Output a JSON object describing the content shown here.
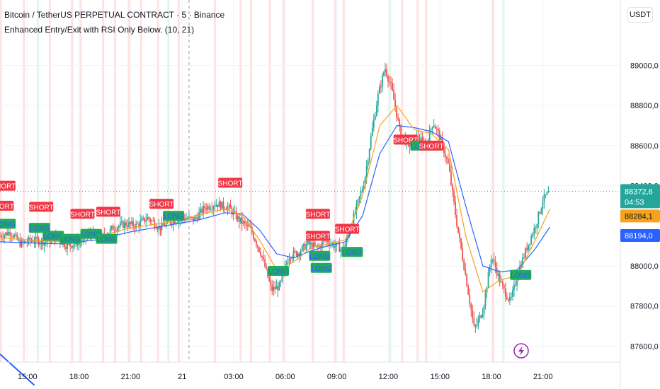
{
  "header": {
    "title": "Bitcoin / TetherUS PERPETUAL CONTRACT · 5 · Binance",
    "indicator": "Enhanced Entry/Exit with RSI Only Below. (10, 21)"
  },
  "currency": "USDT",
  "price_tags": {
    "last_price": "88372,6",
    "countdown": "04:53",
    "ma_fast": "88284,1",
    "ma_slow": "88194,0"
  },
  "colors": {
    "up": "#26a69a",
    "down": "#ef5350",
    "ma_fast": "#f7a21b",
    "ma_slow": "#2962ff",
    "short_label": "#f23645",
    "long_label": "#22ab5e",
    "bg_band_red": "#ffe2e2",
    "bg_band_green": "#e3f5ea"
  },
  "chart_data": {
    "type": "candlestick",
    "y_ticks": [
      "89000,0",
      "88800,0",
      "88600,0",
      "88400,0",
      "88000,0",
      "87800,0",
      "87600,0"
    ],
    "ylim": [
      87520,
      89150
    ],
    "x_ticks": [
      "15:00",
      "18:00",
      "21:00",
      "21",
      "03:00",
      "06:00",
      "09:00",
      "12:00",
      "15:00",
      "18:00",
      "21:00"
    ],
    "x_tick_hours": [
      15,
      18,
      21,
      24,
      27,
      30,
      33,
      36,
      39,
      42,
      45
    ],
    "x_hours_range": [
      13.4,
      49.5
    ],
    "price_path": [
      [
        13.4,
        88150
      ],
      [
        14.0,
        88170
      ],
      [
        14.6,
        88110
      ],
      [
        15.3,
        88130
      ],
      [
        16.0,
        88120
      ],
      [
        16.7,
        88140
      ],
      [
        17.3,
        88100
      ],
      [
        18.0,
        88120
      ],
      [
        18.7,
        88160
      ],
      [
        19.3,
        88140
      ],
      [
        20.0,
        88190
      ],
      [
        20.7,
        88210
      ],
      [
        21.3,
        88200
      ],
      [
        22.0,
        88240
      ],
      [
        22.7,
        88190
      ],
      [
        23.3,
        88220
      ],
      [
        24.0,
        88240
      ],
      [
        24.7,
        88230
      ],
      [
        25.3,
        88290
      ],
      [
        26.0,
        88310
      ],
      [
        26.7,
        88290
      ],
      [
        27.3,
        88230
      ],
      [
        28.0,
        88180
      ],
      [
        28.6,
        88060
      ],
      [
        29.2,
        87880
      ],
      [
        29.7,
        87900
      ],
      [
        30.2,
        88050
      ],
      [
        30.8,
        88070
      ],
      [
        31.3,
        88110
      ],
      [
        31.9,
        88090
      ],
      [
        32.3,
        88130
      ],
      [
        32.9,
        88100
      ],
      [
        33.4,
        88080
      ],
      [
        34.0,
        88250
      ],
      [
        34.6,
        88420
      ],
      [
        35.0,
        88650
      ],
      [
        35.4,
        88850
      ],
      [
        35.8,
        88990
      ],
      [
        36.2,
        88880
      ],
      [
        36.7,
        88660
      ],
      [
        37.2,
        88600
      ],
      [
        37.7,
        88640
      ],
      [
        38.2,
        88600
      ],
      [
        38.6,
        88720
      ],
      [
        39.0,
        88640
      ],
      [
        39.5,
        88500
      ],
      [
        40.0,
        88200
      ],
      [
        40.5,
        87950
      ],
      [
        41.0,
        87680
      ],
      [
        41.5,
        87780
      ],
      [
        42.0,
        88050
      ],
      [
        42.6,
        87900
      ],
      [
        43.1,
        87820
      ],
      [
        43.6,
        87980
      ],
      [
        44.1,
        88100
      ],
      [
        44.6,
        88210
      ],
      [
        45.0,
        88330
      ],
      [
        45.4,
        88372
      ]
    ],
    "ma_fast_path": [
      [
        13.4,
        88140
      ],
      [
        15.0,
        88130
      ],
      [
        17.0,
        88120
      ],
      [
        19.0,
        88145
      ],
      [
        21.0,
        88190
      ],
      [
        23.0,
        88215
      ],
      [
        25.0,
        88255
      ],
      [
        26.5,
        88285
      ],
      [
        27.5,
        88250
      ],
      [
        28.5,
        88130
      ],
      [
        29.5,
        87980
      ],
      [
        30.5,
        88020
      ],
      [
        31.5,
        88090
      ],
      [
        32.5,
        88110
      ],
      [
        33.5,
        88130
      ],
      [
        34.5,
        88350
      ],
      [
        35.5,
        88700
      ],
      [
        36.5,
        88800
      ],
      [
        37.5,
        88680
      ],
      [
        38.5,
        88660
      ],
      [
        39.5,
        88580
      ],
      [
        40.5,
        88150
      ],
      [
        41.5,
        87870
      ],
      [
        42.5,
        87930
      ],
      [
        43.5,
        87950
      ],
      [
        44.5,
        88120
      ],
      [
        45.4,
        88284
      ]
    ],
    "ma_slow_path": [
      [
        13.4,
        88120
      ],
      [
        15.0,
        88115
      ],
      [
        17.0,
        88110
      ],
      [
        19.0,
        88130
      ],
      [
        21.0,
        88170
      ],
      [
        23.0,
        88200
      ],
      [
        25.0,
        88230
      ],
      [
        26.5,
        88265
      ],
      [
        27.5,
        88260
      ],
      [
        28.5,
        88180
      ],
      [
        29.5,
        88060
      ],
      [
        30.5,
        88040
      ],
      [
        31.5,
        88075
      ],
      [
        32.5,
        88100
      ],
      [
        33.5,
        88120
      ],
      [
        34.5,
        88250
      ],
      [
        35.5,
        88560
      ],
      [
        36.5,
        88700
      ],
      [
        37.5,
        88690
      ],
      [
        38.5,
        88670
      ],
      [
        39.5,
        88620
      ],
      [
        40.5,
        88300
      ],
      [
        41.5,
        88000
      ],
      [
        42.5,
        87970
      ],
      [
        43.5,
        87980
      ],
      [
        44.5,
        88080
      ],
      [
        45.4,
        88194
      ]
    ],
    "signals": [
      {
        "type": "SHORT",
        "hour": 13.6,
        "price": 88400
      },
      {
        "type": "SHORT",
        "hour": 13.5,
        "price": 88300
      },
      {
        "type": "LONG",
        "hour": 13.7,
        "price": 88210
      },
      {
        "type": "SHORT",
        "hour": 15.8,
        "price": 88295
      },
      {
        "type": "LONG",
        "hour": 15.7,
        "price": 88190
      },
      {
        "type": "LONG",
        "hour": 16.5,
        "price": 88150
      },
      {
        "type": "SHORT",
        "hour": 18.2,
        "price": 88260
      },
      {
        "type": "LONG",
        "hour": 17.5,
        "price": 88135
      },
      {
        "type": "LONG",
        "hour": 18.7,
        "price": 88160
      },
      {
        "type": "SHORT",
        "hour": 19.7,
        "price": 88270
      },
      {
        "type": "LONG",
        "hour": 19.6,
        "price": 88135
      },
      {
        "type": "SHORT",
        "hour": 22.8,
        "price": 88310
      },
      {
        "type": "LONG",
        "hour": 23.5,
        "price": 88250
      },
      {
        "type": "SHORT",
        "hour": 26.8,
        "price": 88415
      },
      {
        "type": "LONG",
        "hour": 29.6,
        "price": 87975
      },
      {
        "type": "SHORT",
        "hour": 31.9,
        "price": 88260
      },
      {
        "type": "SHORT",
        "hour": 31.9,
        "price": 88150
      },
      {
        "type": "LONG",
        "hour": 32.0,
        "price": 88050
      },
      {
        "type": "LONG",
        "hour": 32.1,
        "price": 87990
      },
      {
        "type": "SHORT",
        "hour": 33.6,
        "price": 88185
      },
      {
        "type": "LONG",
        "hour": 33.9,
        "price": 88070
      },
      {
        "type": "SHORT",
        "hour": 37.0,
        "price": 88630
      },
      {
        "type": "LONG",
        "hour": 37.9,
        "price": 88600
      },
      {
        "type": "SHORT",
        "hour": 38.5,
        "price": 88600
      },
      {
        "type": "LONG",
        "hour": 43.7,
        "price": 87955
      }
    ],
    "bg_bands": [
      {
        "hour": 13.45,
        "color": "red"
      },
      {
        "hour": 14.8,
        "color": "red"
      },
      {
        "hour": 15.6,
        "color": "green"
      },
      {
        "hour": 16.3,
        "color": "red"
      },
      {
        "hour": 17.6,
        "color": "red"
      },
      {
        "hour": 18.1,
        "color": "red"
      },
      {
        "hour": 19.4,
        "color": "red"
      },
      {
        "hour": 20.1,
        "color": "red"
      },
      {
        "hour": 20.9,
        "color": "red"
      },
      {
        "hour": 21.6,
        "color": "red"
      },
      {
        "hour": 22.6,
        "color": "red"
      },
      {
        "hour": 23.2,
        "color": "green"
      },
      {
        "hour": 23.8,
        "color": "red"
      },
      {
        "hour": 25.9,
        "color": "red"
      },
      {
        "hour": 27.4,
        "color": "red"
      },
      {
        "hour": 28.0,
        "color": "red"
      },
      {
        "hour": 29.1,
        "color": "red"
      },
      {
        "hour": 29.9,
        "color": "red"
      },
      {
        "hour": 31.6,
        "color": "red"
      },
      {
        "hour": 32.9,
        "color": "red"
      },
      {
        "hour": 33.4,
        "color": "red"
      },
      {
        "hour": 36.1,
        "color": "green"
      },
      {
        "hour": 36.8,
        "color": "red"
      },
      {
        "hour": 37.7,
        "color": "red"
      },
      {
        "hour": 38.2,
        "color": "red"
      },
      {
        "hour": 42.1,
        "color": "red"
      },
      {
        "hour": 42.7,
        "color": "green"
      }
    ],
    "session_line_hour": 24.4,
    "trendline": [
      [
        13.4,
        87560
      ],
      [
        15.4,
        87405
      ]
    ],
    "grid": true
  }
}
